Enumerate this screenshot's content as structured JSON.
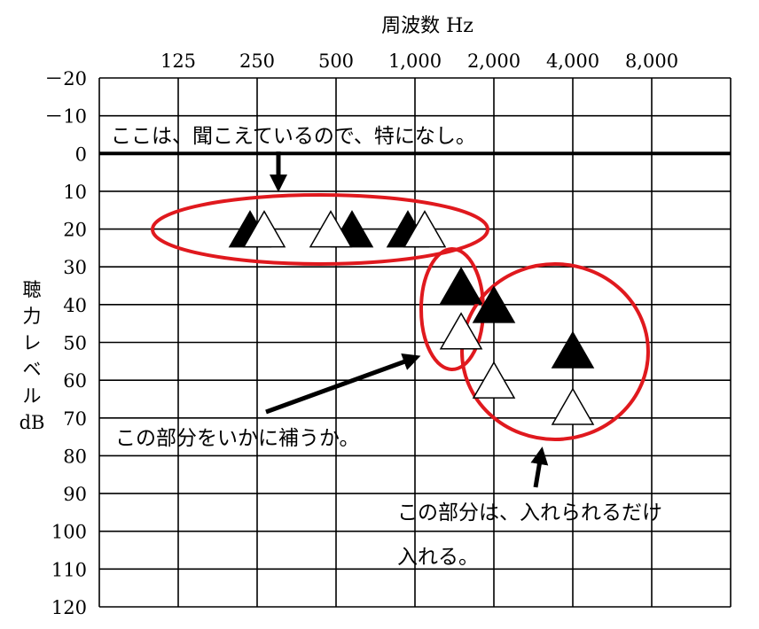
{
  "chart_data": {
    "type": "scatter",
    "title": "",
    "xlabel": "周波数 Hz",
    "ylabel": [
      "聴",
      "力",
      "レ",
      "ベ",
      "ル",
      "dB"
    ],
    "x_categories": [
      "125",
      "250",
      "500",
      "1,000",
      "2,000",
      "4,000",
      "8,000"
    ],
    "y_ticks": [
      -20,
      -10,
      0,
      10,
      20,
      30,
      40,
      50,
      60,
      70,
      80,
      90,
      100,
      110,
      120
    ],
    "y_tick_labels": [
      "－20",
      "－10",
      "0",
      "10",
      "20",
      "30",
      "40",
      "50",
      "60",
      "70",
      "80",
      "90",
      "100",
      "110",
      "120"
    ],
    "ylim": [
      -20,
      120
    ],
    "y_inverted": true,
    "grid": true,
    "series": [
      {
        "fill": "#000000",
        "points": [
          {
            "x": 250,
            "y": 20
          },
          {
            "x": 500,
            "y": 20
          },
          {
            "x": 1000,
            "y": 20
          },
          {
            "x": 1500,
            "y": 35
          },
          {
            "x": 2000,
            "y": 40
          },
          {
            "x": 4000,
            "y": 52
          }
        ]
      },
      {
        "fill": "#ffffff",
        "points": [
          {
            "x": 250,
            "y": 20
          },
          {
            "x": 500,
            "y": 20
          },
          {
            "x": 1000,
            "y": 20
          },
          {
            "x": 1500,
            "y": 47
          },
          {
            "x": 2000,
            "y": 60
          },
          {
            "x": 4000,
            "y": 67
          }
        ]
      }
    ]
  },
  "annotations": {
    "note1": "ここは、聞こえているので、特になし。",
    "note2": "この部分をいかに補うか。",
    "note3_line1": "この部分は、入れられるだけ",
    "note3_line2": "入れる。"
  },
  "colors": {
    "highlight": "#e0191e",
    "zero_line": "#000000"
  }
}
